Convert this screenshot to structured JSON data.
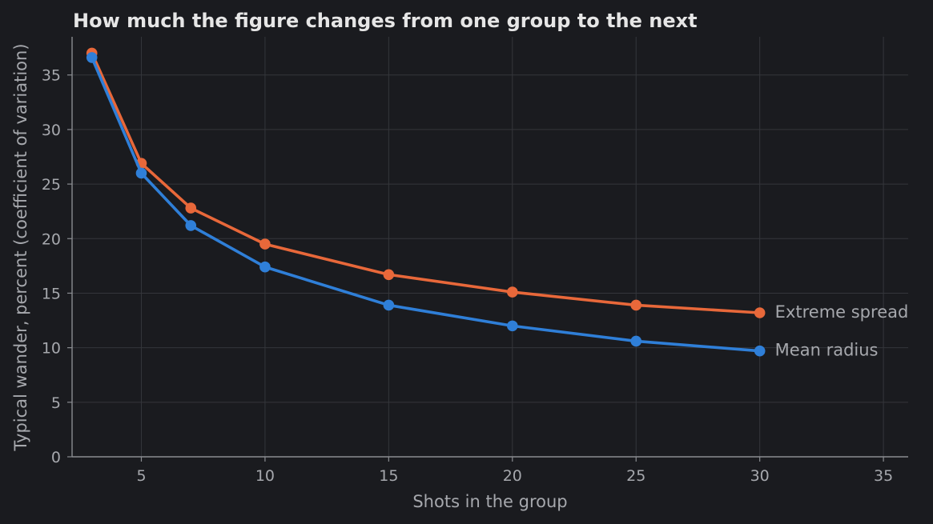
{
  "chart_data": {
    "type": "line",
    "title": "How much the figure changes from one group to the next",
    "xlabel": "Shots in the group",
    "ylabel": "Typical wander, percent (coefficient of variation)",
    "xlim": [
      2.2,
      36
    ],
    "ylim": [
      0,
      38.5
    ],
    "xticks": [
      5,
      10,
      15,
      20,
      25,
      30,
      35
    ],
    "yticks": [
      0,
      5,
      10,
      15,
      20,
      25,
      30,
      35
    ],
    "grid": true,
    "legend": "direct labels at line ends",
    "x": [
      3,
      5,
      7,
      10,
      15,
      20,
      25,
      30
    ],
    "series": [
      {
        "name": "Extreme spread",
        "color": "#e8683a",
        "values": [
          37.0,
          26.9,
          22.8,
          19.5,
          16.7,
          15.1,
          13.9,
          13.2
        ]
      },
      {
        "name": "Mean radius",
        "color": "#2f7fd8",
        "values": [
          36.6,
          26.0,
          21.2,
          17.4,
          13.9,
          12.0,
          10.6,
          9.7
        ]
      }
    ]
  }
}
